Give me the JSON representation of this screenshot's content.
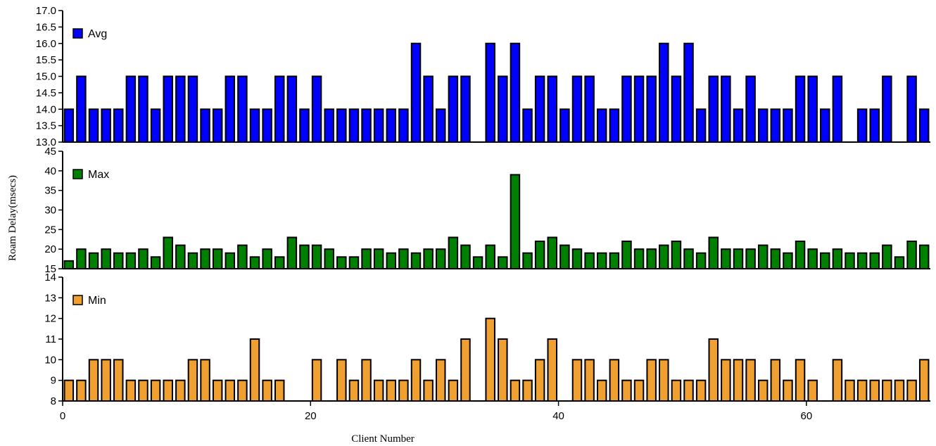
{
  "chart_data": {
    "type": "bar",
    "xlabel": "Client Number",
    "ylabel": "Roam Delay(msecs)",
    "xlim": [
      0,
      70
    ],
    "x_ticks": [
      "0",
      "20",
      "40",
      "60"
    ],
    "x": [
      0,
      1,
      2,
      3,
      4,
      5,
      6,
      7,
      8,
      9,
      10,
      11,
      12,
      13,
      14,
      15,
      16,
      17,
      18,
      19,
      20,
      21,
      22,
      23,
      24,
      25,
      26,
      27,
      28,
      29,
      30,
      31,
      32,
      33,
      34,
      35,
      36,
      37,
      38,
      39,
      40,
      41,
      42,
      43,
      44,
      45,
      46,
      47,
      48,
      49,
      50,
      51,
      52,
      53,
      54,
      55,
      56,
      57,
      58,
      59,
      60,
      61,
      62,
      63,
      64,
      65,
      66,
      67,
      68,
      69
    ],
    "series": [
      {
        "name": "Avg",
        "color": "#0000ff",
        "ylim": [
          13.0,
          17.0
        ],
        "y_ticks": [
          "13.0",
          "13.5",
          "14.0",
          "14.5",
          "15.0",
          "15.5",
          "16.0",
          "16.5",
          "17.0"
        ],
        "values": [
          14,
          15,
          14,
          14,
          14,
          15,
          15,
          14,
          15,
          15,
          15,
          14,
          14,
          15,
          15,
          14,
          14,
          15,
          15,
          14,
          15,
          14,
          14,
          14,
          14,
          14,
          14,
          14,
          16,
          15,
          14,
          15,
          15,
          null,
          16,
          15,
          16,
          14,
          15,
          15,
          14,
          15,
          15,
          14,
          14,
          15,
          15,
          15,
          16,
          15,
          16,
          14,
          15,
          15,
          14,
          15,
          14,
          14,
          14,
          15,
          15,
          14,
          15,
          null,
          14,
          14,
          15,
          null,
          15,
          14
        ]
      },
      {
        "name": "Max",
        "color": "#008000",
        "ylim": [
          15,
          45
        ],
        "y_ticks": [
          "15",
          "20",
          "25",
          "30",
          "35",
          "40",
          "45"
        ],
        "values": [
          17,
          20,
          19,
          20,
          19,
          19,
          20,
          18,
          23,
          21,
          19,
          20,
          20,
          19,
          21,
          18,
          20,
          18,
          23,
          21,
          21,
          20,
          18,
          18,
          20,
          20,
          19,
          20,
          19,
          20,
          20,
          23,
          21,
          18,
          21,
          18,
          39,
          19,
          22,
          23,
          21,
          20,
          19,
          19,
          19,
          22,
          20,
          20,
          21,
          22,
          20,
          19,
          23,
          20,
          20,
          20,
          21,
          20,
          19,
          22,
          20,
          19,
          20,
          19,
          19,
          19,
          21,
          18,
          22,
          21
        ]
      },
      {
        "name": "Min",
        "color": "#f0a030",
        "ylim": [
          8,
          14
        ],
        "y_ticks": [
          "8",
          "9",
          "10",
          "11",
          "12",
          "13",
          "14"
        ],
        "values": [
          9,
          9,
          10,
          10,
          10,
          9,
          9,
          9,
          9,
          9,
          10,
          10,
          9,
          9,
          9,
          11,
          9,
          9,
          null,
          null,
          10,
          null,
          10,
          9,
          10,
          9,
          9,
          9,
          10,
          9,
          10,
          9,
          11,
          null,
          12,
          11,
          9,
          9,
          10,
          11,
          null,
          10,
          10,
          9,
          10,
          9,
          9,
          10,
          10,
          9,
          9,
          9,
          11,
          10,
          10,
          10,
          9,
          10,
          9,
          10,
          9,
          null,
          10,
          9,
          9,
          9,
          9,
          9,
          9,
          10
        ]
      }
    ]
  }
}
